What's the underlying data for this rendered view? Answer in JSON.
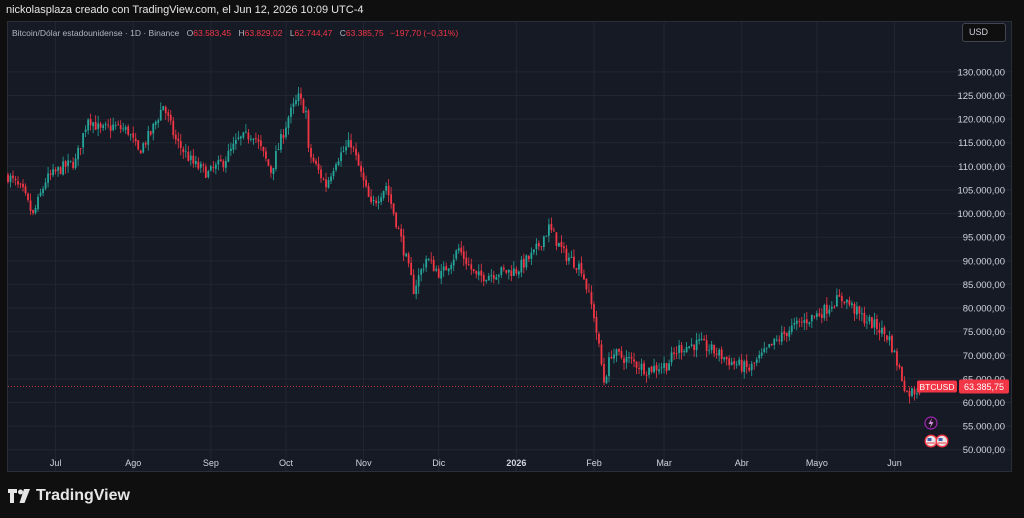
{
  "header": {
    "caption": "nickolasplaza creado con TradingView.com, el Jun 12, 2026 10:09 UTC-4"
  },
  "legend": {
    "symbol": "Bitcoin/Dólar estadounidense · 1D · Binance",
    "o_label": "O",
    "o_value": "63.583,45",
    "h_label": "H",
    "h_value": "63.829,02",
    "l_label": "L",
    "l_value": "62.744,47",
    "c_label": "C",
    "c_value": "63.385,75",
    "change": "−197,70 (−0,31%)"
  },
  "currency_button": "USD",
  "footer": {
    "brand": "TradingView"
  },
  "colors": {
    "up": "#26a69a",
    "down": "#f23645",
    "background": "#161a25",
    "grid": "#222632",
    "text": "#d1d4dc"
  },
  "icons": [
    "lightning-icon",
    "us-flag-icon",
    "event-flag-icon",
    "tradingview-logo-icon"
  ],
  "chart_data": {
    "type": "candlestick",
    "symbol_tag": "BTCUSD",
    "last_price": 63385.75,
    "last_price_label": "63.385,75",
    "ylim": [
      45500,
      134000
    ],
    "y_ticks": [
      50000,
      55000,
      60000,
      65000,
      70000,
      75000,
      80000,
      85000,
      90000,
      95000,
      100000,
      105000,
      110000,
      115000,
      120000,
      125000,
      130000
    ],
    "y_tick_labels": [
      "50.000,00",
      "55.000,00",
      "60.000,00",
      "65.000,00",
      "70.000,00",
      "75.000,00",
      "80.000,00",
      "85.000,00",
      "90.000,00",
      "95.000,00",
      "100.000,00",
      "105.000,00",
      "110.000,00",
      "115.000,00",
      "120.000,00",
      "125.000,00",
      "130.000,00"
    ],
    "x_labels": [
      "Jul",
      "Ago",
      "Sep",
      "Oct",
      "Nov",
      "Dic",
      "2026",
      "Feb",
      "Mar",
      "Abr",
      "Mayo",
      "Jun"
    ],
    "x_label_bold": [
      false,
      false,
      false,
      false,
      false,
      false,
      true,
      false,
      false,
      false,
      false,
      false
    ],
    "x_start": "2025-06-12",
    "x_end": "2026-06-12",
    "x_label_dates": [
      "2025-07-01",
      "2025-08-01",
      "2025-09-01",
      "2025-10-01",
      "2025-11-01",
      "2025-12-01",
      "2026-01-01",
      "2026-02-01",
      "2026-03-01",
      "2026-04-01",
      "2026-05-01",
      "2026-06-01"
    ],
    "anchors": [
      [
        "2025-06-12",
        108000
      ],
      [
        "2025-06-18",
        104500
      ],
      [
        "2025-06-22",
        99500
      ],
      [
        "2025-06-27",
        107000
      ],
      [
        "2025-07-03",
        109500
      ],
      [
        "2025-07-09",
        111000
      ],
      [
        "2025-07-14",
        120500
      ],
      [
        "2025-07-19",
        117500
      ],
      [
        "2025-07-24",
        118500
      ],
      [
        "2025-07-30",
        117500
      ],
      [
        "2025-08-03",
        113000
      ],
      [
        "2025-08-08",
        117000
      ],
      [
        "2025-08-13",
        123000
      ],
      [
        "2025-08-18",
        115500
      ],
      [
        "2025-08-25",
        110500
      ],
      [
        "2025-08-31",
        108500
      ],
      [
        "2025-09-06",
        111000
      ],
      [
        "2025-09-12",
        115500
      ],
      [
        "2025-09-18",
        117000
      ],
      [
        "2025-09-25",
        109000
      ],
      [
        "2025-10-02",
        120500
      ],
      [
        "2025-10-06",
        124500
      ],
      [
        "2025-10-09",
        121500
      ],
      [
        "2025-10-10",
        113000
      ],
      [
        "2025-10-17",
        106000
      ],
      [
        "2025-10-21",
        111500
      ],
      [
        "2025-10-27",
        115000
      ],
      [
        "2025-11-04",
        101500
      ],
      [
        "2025-11-10",
        106000
      ],
      [
        "2025-11-16",
        94500
      ],
      [
        "2025-11-21",
        84000
      ],
      [
        "2025-11-26",
        90500
      ],
      [
        "2025-12-02",
        87000
      ],
      [
        "2025-12-09",
        92500
      ],
      [
        "2025-12-16",
        86500
      ],
      [
        "2025-12-24",
        87500
      ],
      [
        "2026-01-01",
        88000
      ],
      [
        "2026-01-08",
        91500
      ],
      [
        "2026-01-14",
        97000
      ],
      [
        "2026-01-20",
        91500
      ],
      [
        "2026-01-27",
        88500
      ],
      [
        "2026-02-01",
        78500
      ],
      [
        "2026-02-05",
        64500
      ],
      [
        "2026-02-08",
        70500
      ],
      [
        "2026-02-15",
        69000
      ],
      [
        "2026-02-22",
        67000
      ],
      [
        "2026-03-02",
        68000
      ],
      [
        "2026-03-07",
        71500
      ],
      [
        "2026-03-15",
        72500
      ],
      [
        "2026-03-22",
        70500
      ],
      [
        "2026-03-28",
        68500
      ],
      [
        "2026-04-04",
        67000
      ],
      [
        "2026-04-12",
        71500
      ],
      [
        "2026-04-20",
        75500
      ],
      [
        "2026-04-27",
        77500
      ],
      [
        "2026-05-04",
        79500
      ],
      [
        "2026-05-08",
        81500
      ],
      [
        "2026-05-12",
        82000
      ],
      [
        "2026-05-18",
        78500
      ],
      [
        "2026-05-25",
        76000
      ],
      [
        "2026-05-30",
        73500
      ],
      [
        "2026-06-02",
        68500
      ],
      [
        "2026-06-06",
        62000
      ],
      [
        "2026-06-10",
        62700
      ],
      [
        "2026-06-12",
        63386
      ]
    ]
  }
}
